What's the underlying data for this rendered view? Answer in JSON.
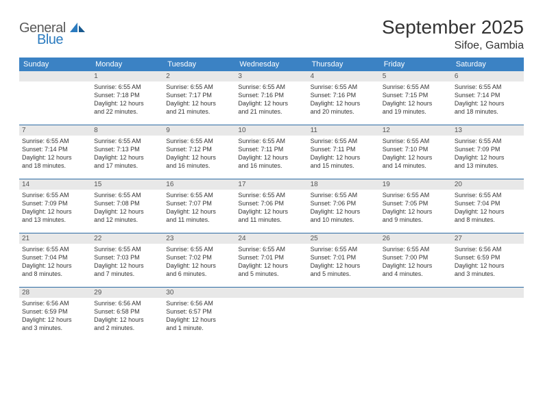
{
  "logo": {
    "general": "General",
    "blue": "Blue"
  },
  "title": "September 2025",
  "location": "Sifoe, Gambia",
  "colors": {
    "header_bg": "#3b82c4",
    "header_text": "#ffffff",
    "daynum_bg": "#e8e8e8",
    "week_border": "#2b6aa3",
    "body_text": "#333333",
    "logo_gray": "#5a5a5a",
    "logo_blue": "#2b7bbf",
    "page_bg": "#ffffff"
  },
  "typography": {
    "title_fontsize": 28,
    "location_fontsize": 16,
    "header_fontsize": 11,
    "daynum_fontsize": 10,
    "body_fontsize": 9
  },
  "weekdays": [
    "Sunday",
    "Monday",
    "Tuesday",
    "Wednesday",
    "Thursday",
    "Friday",
    "Saturday"
  ],
  "weeks": [
    [
      {
        "empty": true
      },
      {
        "num": "1",
        "sunrise": "Sunrise: 6:55 AM",
        "sunset": "Sunset: 7:18 PM",
        "daylight1": "Daylight: 12 hours",
        "daylight2": "and 22 minutes."
      },
      {
        "num": "2",
        "sunrise": "Sunrise: 6:55 AM",
        "sunset": "Sunset: 7:17 PM",
        "daylight1": "Daylight: 12 hours",
        "daylight2": "and 21 minutes."
      },
      {
        "num": "3",
        "sunrise": "Sunrise: 6:55 AM",
        "sunset": "Sunset: 7:16 PM",
        "daylight1": "Daylight: 12 hours",
        "daylight2": "and 21 minutes."
      },
      {
        "num": "4",
        "sunrise": "Sunrise: 6:55 AM",
        "sunset": "Sunset: 7:16 PM",
        "daylight1": "Daylight: 12 hours",
        "daylight2": "and 20 minutes."
      },
      {
        "num": "5",
        "sunrise": "Sunrise: 6:55 AM",
        "sunset": "Sunset: 7:15 PM",
        "daylight1": "Daylight: 12 hours",
        "daylight2": "and 19 minutes."
      },
      {
        "num": "6",
        "sunrise": "Sunrise: 6:55 AM",
        "sunset": "Sunset: 7:14 PM",
        "daylight1": "Daylight: 12 hours",
        "daylight2": "and 18 minutes."
      }
    ],
    [
      {
        "num": "7",
        "sunrise": "Sunrise: 6:55 AM",
        "sunset": "Sunset: 7:14 PM",
        "daylight1": "Daylight: 12 hours",
        "daylight2": "and 18 minutes."
      },
      {
        "num": "8",
        "sunrise": "Sunrise: 6:55 AM",
        "sunset": "Sunset: 7:13 PM",
        "daylight1": "Daylight: 12 hours",
        "daylight2": "and 17 minutes."
      },
      {
        "num": "9",
        "sunrise": "Sunrise: 6:55 AM",
        "sunset": "Sunset: 7:12 PM",
        "daylight1": "Daylight: 12 hours",
        "daylight2": "and 16 minutes."
      },
      {
        "num": "10",
        "sunrise": "Sunrise: 6:55 AM",
        "sunset": "Sunset: 7:11 PM",
        "daylight1": "Daylight: 12 hours",
        "daylight2": "and 16 minutes."
      },
      {
        "num": "11",
        "sunrise": "Sunrise: 6:55 AM",
        "sunset": "Sunset: 7:11 PM",
        "daylight1": "Daylight: 12 hours",
        "daylight2": "and 15 minutes."
      },
      {
        "num": "12",
        "sunrise": "Sunrise: 6:55 AM",
        "sunset": "Sunset: 7:10 PM",
        "daylight1": "Daylight: 12 hours",
        "daylight2": "and 14 minutes."
      },
      {
        "num": "13",
        "sunrise": "Sunrise: 6:55 AM",
        "sunset": "Sunset: 7:09 PM",
        "daylight1": "Daylight: 12 hours",
        "daylight2": "and 13 minutes."
      }
    ],
    [
      {
        "num": "14",
        "sunrise": "Sunrise: 6:55 AM",
        "sunset": "Sunset: 7:09 PM",
        "daylight1": "Daylight: 12 hours",
        "daylight2": "and 13 minutes."
      },
      {
        "num": "15",
        "sunrise": "Sunrise: 6:55 AM",
        "sunset": "Sunset: 7:08 PM",
        "daylight1": "Daylight: 12 hours",
        "daylight2": "and 12 minutes."
      },
      {
        "num": "16",
        "sunrise": "Sunrise: 6:55 AM",
        "sunset": "Sunset: 7:07 PM",
        "daylight1": "Daylight: 12 hours",
        "daylight2": "and 11 minutes."
      },
      {
        "num": "17",
        "sunrise": "Sunrise: 6:55 AM",
        "sunset": "Sunset: 7:06 PM",
        "daylight1": "Daylight: 12 hours",
        "daylight2": "and 11 minutes."
      },
      {
        "num": "18",
        "sunrise": "Sunrise: 6:55 AM",
        "sunset": "Sunset: 7:06 PM",
        "daylight1": "Daylight: 12 hours",
        "daylight2": "and 10 minutes."
      },
      {
        "num": "19",
        "sunrise": "Sunrise: 6:55 AM",
        "sunset": "Sunset: 7:05 PM",
        "daylight1": "Daylight: 12 hours",
        "daylight2": "and 9 minutes."
      },
      {
        "num": "20",
        "sunrise": "Sunrise: 6:55 AM",
        "sunset": "Sunset: 7:04 PM",
        "daylight1": "Daylight: 12 hours",
        "daylight2": "and 8 minutes."
      }
    ],
    [
      {
        "num": "21",
        "sunrise": "Sunrise: 6:55 AM",
        "sunset": "Sunset: 7:04 PM",
        "daylight1": "Daylight: 12 hours",
        "daylight2": "and 8 minutes."
      },
      {
        "num": "22",
        "sunrise": "Sunrise: 6:55 AM",
        "sunset": "Sunset: 7:03 PM",
        "daylight1": "Daylight: 12 hours",
        "daylight2": "and 7 minutes."
      },
      {
        "num": "23",
        "sunrise": "Sunrise: 6:55 AM",
        "sunset": "Sunset: 7:02 PM",
        "daylight1": "Daylight: 12 hours",
        "daylight2": "and 6 minutes."
      },
      {
        "num": "24",
        "sunrise": "Sunrise: 6:55 AM",
        "sunset": "Sunset: 7:01 PM",
        "daylight1": "Daylight: 12 hours",
        "daylight2": "and 5 minutes."
      },
      {
        "num": "25",
        "sunrise": "Sunrise: 6:55 AM",
        "sunset": "Sunset: 7:01 PM",
        "daylight1": "Daylight: 12 hours",
        "daylight2": "and 5 minutes."
      },
      {
        "num": "26",
        "sunrise": "Sunrise: 6:55 AM",
        "sunset": "Sunset: 7:00 PM",
        "daylight1": "Daylight: 12 hours",
        "daylight2": "and 4 minutes."
      },
      {
        "num": "27",
        "sunrise": "Sunrise: 6:56 AM",
        "sunset": "Sunset: 6:59 PM",
        "daylight1": "Daylight: 12 hours",
        "daylight2": "and 3 minutes."
      }
    ],
    [
      {
        "num": "28",
        "sunrise": "Sunrise: 6:56 AM",
        "sunset": "Sunset: 6:59 PM",
        "daylight1": "Daylight: 12 hours",
        "daylight2": "and 3 minutes."
      },
      {
        "num": "29",
        "sunrise": "Sunrise: 6:56 AM",
        "sunset": "Sunset: 6:58 PM",
        "daylight1": "Daylight: 12 hours",
        "daylight2": "and 2 minutes."
      },
      {
        "num": "30",
        "sunrise": "Sunrise: 6:56 AM",
        "sunset": "Sunset: 6:57 PM",
        "daylight1": "Daylight: 12 hours",
        "daylight2": "and 1 minute."
      },
      {
        "empty": true
      },
      {
        "empty": true
      },
      {
        "empty": true
      },
      {
        "empty": true
      }
    ]
  ]
}
